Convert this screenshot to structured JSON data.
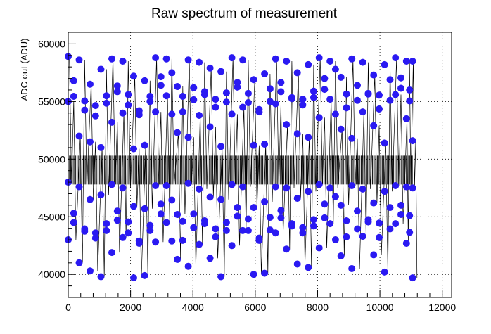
{
  "chart_data": {
    "type": "scatter",
    "title": "Raw spectrum of measurement",
    "xlabel": "",
    "ylabel": "ADC out (ADU)",
    "xlim": [
      0,
      12300
    ],
    "ylim": [
      38000,
      61000
    ],
    "x_ticks": [
      0,
      2000,
      4000,
      6000,
      8000,
      10000,
      12000
    ],
    "x_tick_labels": [
      "0",
      "2000",
      "4000",
      "6000",
      "8000",
      "10000",
      "12000"
    ],
    "y_ticks": [
      40000,
      45000,
      50000,
      55000,
      60000
    ],
    "y_tick_labels": [
      "40000",
      "45000",
      "50000",
      "55000",
      "60000"
    ],
    "grid": true,
    "connecting_line": true,
    "colors": {
      "line": "#000000",
      "marker": "#2a19f2"
    },
    "series": [
      {
        "sampling": "approximate digitization of a dense ~11000-sample trace",
        "x": [
          0,
          350,
          700,
          1050,
          1400,
          1750,
          2100,
          2450,
          2800,
          3150,
          3500,
          3850,
          4200,
          4550,
          4900,
          5250,
          5600,
          5950,
          6300,
          6650,
          7000,
          7350,
          7700,
          8050,
          8400,
          8750,
          9100,
          9450,
          9800,
          10150,
          10500,
          10850,
          11050
        ],
        "upper_band": [
          [
            58900,
            52000,
            56500,
            51000,
            58700,
            54000,
            57200,
            51200,
            58800,
            55500,
            52300,
            58600,
            53800,
            57900,
            51100,
            58800,
            54500,
            56900,
            51300,
            58700,
            53000,
            57500,
            51900,
            58800,
            55200,
            52600,
            58700,
            54100,
            57300,
            51400,
            58800,
            53500,
            58500
          ],
          [
            55000,
            58600,
            51500,
            57800,
            53200,
            58500,
            50900,
            56800,
            54100,
            58700,
            56300,
            51900,
            58400,
            52800,
            57600,
            53900,
            58600,
            51200,
            57400,
            54800,
            58500,
            52200,
            58200,
            53600,
            58500,
            57100,
            51800,
            58400,
            52900,
            58200,
            55600,
            58500,
            51600
          ]
        ],
        "lower_band": [
          [
            48000,
            41000,
            46500,
            39800,
            47800,
            43200,
            45900,
            39900,
            47700,
            44500,
            41300,
            47900,
            42600,
            46700,
            39800,
            47800,
            43800,
            45800,
            40100,
            47600,
            42200,
            46600,
            40600,
            47800,
            44400,
            41600,
            47700,
            43300,
            46200,
            40200,
            47700,
            42700,
            47500
          ],
          [
            43000,
            47600,
            40300,
            46900,
            41900,
            47500,
            39700,
            45700,
            42800,
            47700,
            45200,
            40700,
            47400,
            41400,
            46500,
            42500,
            47600,
            40000,
            46300,
            43600,
            47500,
            40900,
            47200,
            42300,
            47500,
            46000,
            40500,
            47400,
            41700,
            47200,
            44400,
            47600,
            39700
          ]
        ]
      }
    ]
  }
}
